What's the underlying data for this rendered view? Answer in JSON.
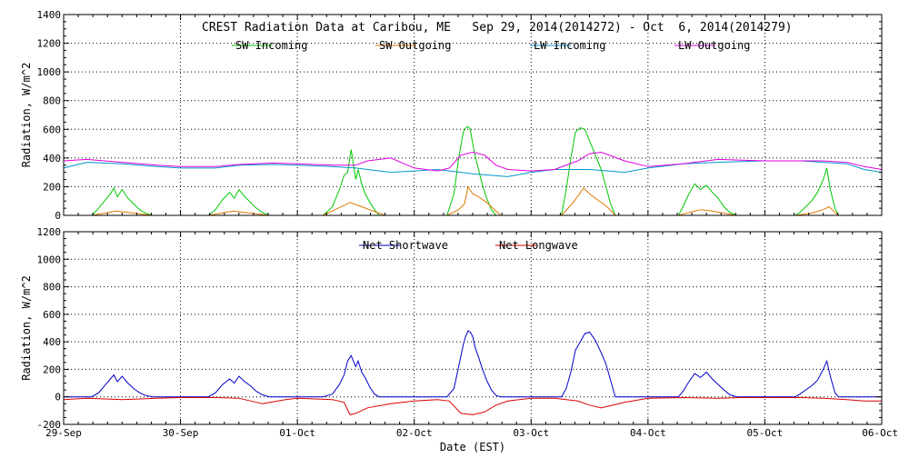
{
  "chart_data": [
    {
      "type": "line",
      "title": "CREST Radiation Data at Caribou, ME   Sep 29, 2014(2014272) - Oct  6, 2014(2014279)",
      "xlabel": "",
      "ylabel": "Radiation, W/m^2",
      "x_ticks": [
        "29-Sep",
        "30-Sep",
        "01-Oct",
        "02-Oct",
        "03-Oct",
        "04-Oct",
        "05-Oct",
        "06-Oct"
      ],
      "xlim": [
        0,
        7
      ],
      "ylim": [
        0,
        1400
      ],
      "y_ticks": [
        0,
        200,
        400,
        600,
        800,
        1000,
        1200,
        1400
      ],
      "grid": true,
      "legend": "top",
      "series": [
        {
          "name": "SW Incoming",
          "color": "#00c800",
          "x": [
            0.24,
            0.3,
            0.35,
            0.4,
            0.43,
            0.46,
            0.5,
            0.55,
            0.6,
            0.65,
            0.7,
            0.76,
            1.24,
            1.3,
            1.36,
            1.42,
            1.46,
            1.5,
            1.55,
            1.6,
            1.65,
            1.7,
            1.76,
            2.22,
            2.3,
            2.36,
            2.4,
            2.43,
            2.46,
            2.5,
            2.52,
            2.55,
            2.58,
            2.62,
            2.66,
            2.7,
            2.74,
            2.8,
            3.28,
            3.34,
            3.38,
            3.42,
            3.44,
            3.46,
            3.48,
            3.5,
            3.52,
            3.55,
            3.58,
            3.62,
            3.66,
            3.7,
            3.74,
            4.26,
            4.3,
            4.34,
            4.38,
            4.42,
            4.46,
            4.5,
            4.55,
            4.6,
            4.64,
            4.68,
            4.72,
            5.26,
            5.3,
            5.35,
            5.4,
            5.45,
            5.5,
            5.55,
            5.6,
            5.65,
            5.7,
            5.76,
            6.26,
            6.3,
            6.35,
            6.4,
            6.45,
            6.5,
            6.53,
            6.56,
            6.6,
            6.63
          ],
          "y": [
            0,
            50,
            100,
            150,
            190,
            130,
            180,
            120,
            80,
            40,
            15,
            0,
            0,
            40,
            110,
            160,
            120,
            180,
            130,
            90,
            50,
            20,
            0,
            0,
            60,
            180,
            280,
            300,
            460,
            250,
            320,
            220,
            150,
            90,
            40,
            0,
            0,
            0,
            0,
            150,
            400,
            580,
            610,
            620,
            600,
            500,
            420,
            320,
            220,
            120,
            40,
            0,
            0,
            0,
            180,
            400,
            580,
            610,
            600,
            520,
            420,
            320,
            200,
            80,
            0,
            0,
            60,
            150,
            220,
            180,
            210,
            160,
            120,
            60,
            20,
            0,
            0,
            20,
            60,
            100,
            160,
            250,
            330,
            180,
            50,
            0
          ]
        },
        {
          "name": "SW Outgoing",
          "color": "#e07800",
          "x": [
            0.24,
            0.35,
            0.45,
            0.55,
            0.65,
            0.76,
            1.24,
            1.35,
            1.45,
            1.55,
            1.65,
            1.76,
            2.22,
            2.35,
            2.45,
            2.55,
            2.65,
            2.75,
            3.28,
            3.38,
            3.43,
            3.46,
            3.5,
            3.55,
            3.62,
            3.7,
            3.74,
            4.26,
            4.35,
            4.45,
            4.5,
            4.55,
            4.65,
            4.72,
            5.26,
            5.35,
            5.45,
            5.55,
            5.65,
            5.76,
            6.26,
            6.4,
            6.5,
            6.55,
            6.6,
            6.63
          ],
          "y": [
            0,
            15,
            30,
            20,
            10,
            0,
            0,
            15,
            30,
            20,
            10,
            0,
            0,
            50,
            90,
            60,
            30,
            0,
            0,
            40,
            80,
            200,
            150,
            130,
            90,
            30,
            0,
            0,
            80,
            190,
            150,
            120,
            60,
            0,
            0,
            20,
            40,
            30,
            15,
            0,
            0,
            15,
            40,
            60,
            20,
            0
          ]
        },
        {
          "name": "LW Incoming",
          "color": "#0096c8",
          "x": [
            0,
            0.2,
            0.5,
            0.8,
            1.0,
            1.3,
            1.5,
            1.8,
            2.0,
            2.3,
            2.5,
            2.6,
            2.8,
            3.0,
            3.2,
            3.5,
            3.8,
            4.0,
            4.2,
            4.5,
            4.8,
            5.0,
            5.3,
            5.6,
            5.8,
            6.0,
            6.3,
            6.5,
            6.7,
            6.85,
            7.0
          ],
          "y": [
            330,
            370,
            360,
            340,
            330,
            330,
            350,
            355,
            350,
            340,
            330,
            320,
            300,
            310,
            320,
            290,
            270,
            300,
            320,
            320,
            300,
            330,
            360,
            370,
            375,
            380,
            380,
            370,
            360,
            320,
            300
          ]
        },
        {
          "name": "LW Outgoing",
          "color": "#e000e0",
          "x": [
            0,
            0.2,
            0.5,
            0.8,
            1.0,
            1.3,
            1.5,
            1.8,
            2.0,
            2.3,
            2.5,
            2.6,
            2.8,
            3.0,
            3.2,
            3.3,
            3.4,
            3.5,
            3.6,
            3.7,
            3.8,
            4.0,
            4.2,
            4.4,
            4.5,
            4.6,
            4.8,
            5.0,
            5.3,
            5.6,
            5.8,
            6.0,
            6.3,
            6.5,
            6.7,
            6.85,
            7.0
          ],
          "y": [
            380,
            390,
            370,
            350,
            340,
            340,
            355,
            365,
            360,
            350,
            350,
            380,
            400,
            330,
            310,
            330,
            420,
            440,
            420,
            350,
            320,
            310,
            320,
            380,
            430,
            440,
            380,
            340,
            360,
            390,
            385,
            380,
            380,
            380,
            370,
            340,
            320
          ]
        }
      ]
    },
    {
      "type": "line",
      "xlabel": "Date (EST)",
      "ylabel": "Radiation, W/m^2",
      "x_ticks": [
        "29-Sep",
        "30-Sep",
        "01-Oct",
        "02-Oct",
        "03-Oct",
        "04-Oct",
        "05-Oct",
        "06-Oct"
      ],
      "xlim": [
        0,
        7
      ],
      "ylim": [
        -200,
        1200
      ],
      "y_ticks": [
        -200,
        0,
        200,
        400,
        600,
        800,
        1000,
        1200
      ],
      "grid": true,
      "legend": "top",
      "series": [
        {
          "name": "Net Shortwave",
          "color": "#0000c8",
          "x": [
            0,
            0.24,
            0.3,
            0.35,
            0.4,
            0.43,
            0.46,
            0.5,
            0.55,
            0.6,
            0.65,
            0.7,
            0.76,
            1.0,
            1.24,
            1.3,
            1.36,
            1.42,
            1.46,
            1.5,
            1.55,
            1.6,
            1.65,
            1.7,
            1.76,
            2.0,
            2.22,
            2.3,
            2.36,
            2.4,
            2.43,
            2.46,
            2.5,
            2.52,
            2.55,
            2.58,
            2.62,
            2.66,
            2.7,
            2.74,
            2.8,
            3.0,
            3.28,
            3.34,
            3.38,
            3.42,
            3.44,
            3.46,
            3.48,
            3.5,
            3.52,
            3.55,
            3.58,
            3.62,
            3.66,
            3.7,
            3.74,
            4.0,
            4.26,
            4.3,
            4.34,
            4.38,
            4.42,
            4.46,
            4.5,
            4.55,
            4.6,
            4.64,
            4.68,
            4.72,
            5.0,
            5.26,
            5.3,
            5.35,
            5.4,
            5.45,
            5.5,
            5.55,
            5.6,
            5.65,
            5.7,
            5.76,
            6.0,
            6.26,
            6.3,
            6.35,
            6.4,
            6.45,
            6.5,
            6.53,
            6.56,
            6.6,
            6.63,
            7.0
          ],
          "y": [
            0,
            0,
            30,
            80,
            130,
            160,
            110,
            150,
            100,
            60,
            30,
            10,
            0,
            0,
            0,
            30,
            90,
            130,
            100,
            150,
            110,
            80,
            40,
            15,
            0,
            0,
            0,
            20,
            90,
            160,
            260,
            300,
            220,
            260,
            180,
            140,
            70,
            20,
            0,
            0,
            0,
            0,
            0,
            60,
            220,
            380,
            440,
            480,
            470,
            440,
            360,
            290,
            210,
            120,
            50,
            10,
            0,
            0,
            0,
            60,
            180,
            340,
            400,
            460,
            470,
            410,
            320,
            240,
            120,
            0,
            0,
            0,
            40,
            110,
            170,
            140,
            180,
            130,
            90,
            50,
            15,
            0,
            0,
            0,
            20,
            50,
            80,
            120,
            200,
            260,
            150,
            30,
            0,
            0
          ]
        },
        {
          "name": "Net Longwave",
          "color": "#dc0000",
          "x": [
            0,
            0.2,
            0.5,
            0.8,
            1.0,
            1.3,
            1.5,
            1.7,
            1.9,
            2.0,
            2.3,
            2.4,
            2.45,
            2.5,
            2.6,
            2.8,
            3.0,
            3.2,
            3.3,
            3.4,
            3.5,
            3.6,
            3.7,
            3.8,
            4.0,
            4.2,
            4.4,
            4.5,
            4.6,
            4.8,
            5.0,
            5.3,
            5.6,
            5.8,
            6.0,
            6.3,
            6.5,
            6.7,
            6.85,
            7.0
          ],
          "y": [
            -20,
            -10,
            -20,
            -10,
            -5,
            -5,
            -10,
            -50,
            -20,
            -10,
            -20,
            -40,
            -130,
            -120,
            -80,
            -50,
            -30,
            -20,
            -30,
            -120,
            -130,
            -110,
            -60,
            -30,
            -10,
            -10,
            -30,
            -60,
            -80,
            -40,
            -10,
            -5,
            -10,
            -5,
            -5,
            -5,
            -10,
            -20,
            -30,
            -30
          ]
        }
      ]
    }
  ]
}
